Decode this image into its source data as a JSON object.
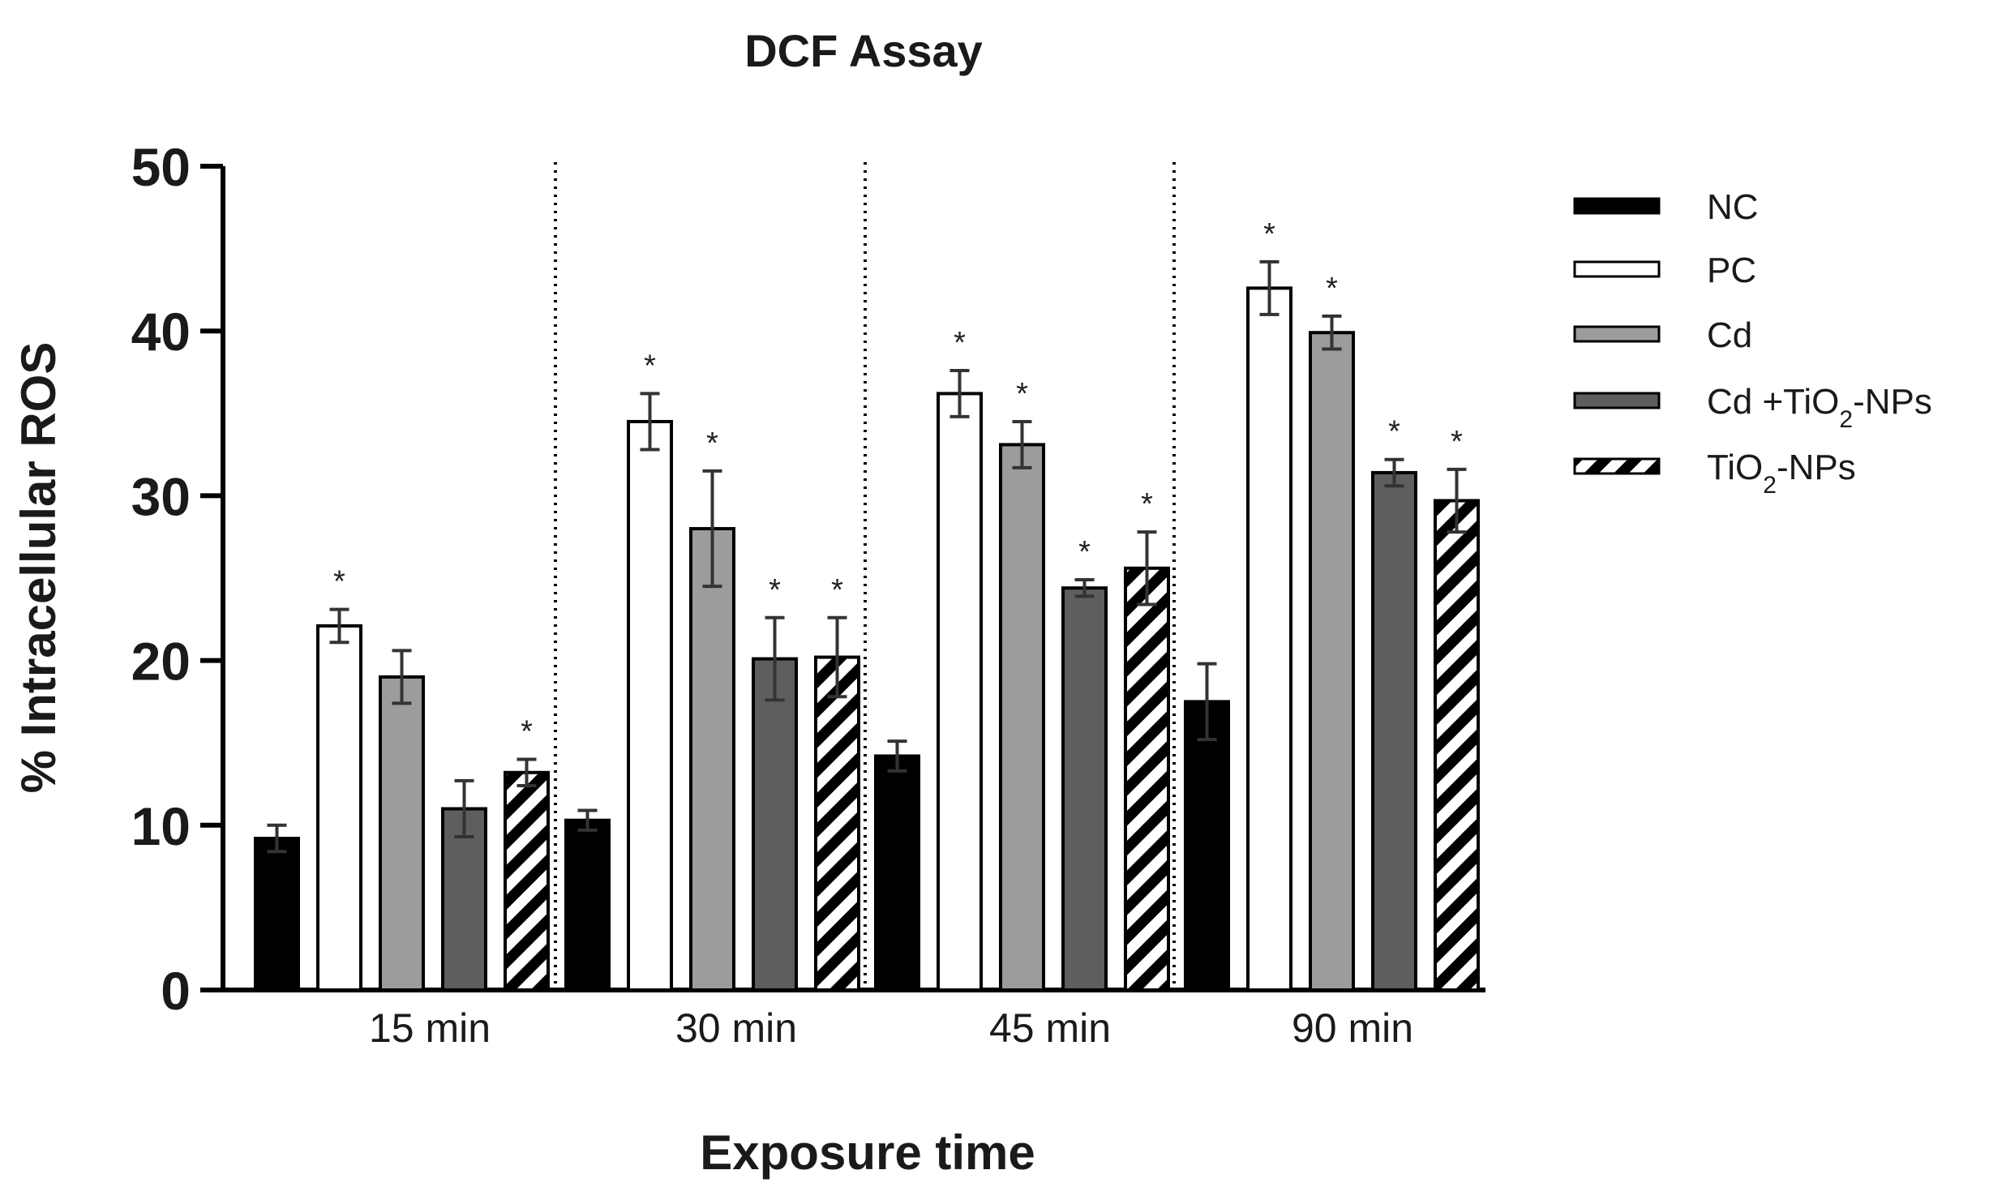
{
  "chart_data": {
    "type": "bar",
    "title": "DCF Assay",
    "xlabel": "Exposure time",
    "ylabel": "% Intracellular ROS",
    "ylim": [
      0,
      50
    ],
    "yticks": [
      "0",
      "10",
      "20",
      "30",
      "40",
      "50"
    ],
    "categories": [
      "15 min",
      "30 min",
      "45 min",
      "90 min"
    ],
    "significance_marker": "*",
    "series": [
      {
        "name": "NC",
        "legend_parts": [
          "NC"
        ],
        "color": "#000000",
        "pattern": "solid",
        "values": [
          9.2,
          10.3,
          14.2,
          17.5
        ],
        "errors": [
          0.8,
          0.6,
          0.9,
          2.3
        ],
        "significant": [
          false,
          false,
          false,
          false
        ]
      },
      {
        "name": "PC",
        "legend_parts": [
          "PC"
        ],
        "color": "#ffffff",
        "pattern": "solid",
        "values": [
          22.1,
          34.5,
          36.2,
          42.6
        ],
        "errors": [
          1.0,
          1.7,
          1.4,
          1.6
        ],
        "significant": [
          true,
          true,
          true,
          true
        ]
      },
      {
        "name": "Cd",
        "legend_parts": [
          "Cd"
        ],
        "color": "#9c9c9c",
        "pattern": "solid",
        "values": [
          19.0,
          28.0,
          33.1,
          39.9
        ],
        "errors": [
          1.6,
          3.5,
          1.4,
          1.0
        ],
        "significant": [
          false,
          true,
          true,
          true
        ]
      },
      {
        "name": "Cd +TiO2-NPs",
        "legend_parts": [
          "Cd +TiO",
          "2",
          "-NPs"
        ],
        "color": "#5e5e5e",
        "pattern": "solid",
        "values": [
          11.0,
          20.1,
          24.4,
          31.4
        ],
        "errors": [
          1.7,
          2.5,
          0.5,
          0.8
        ],
        "significant": [
          false,
          true,
          true,
          true
        ]
      },
      {
        "name": "TiO2-NPs",
        "legend_parts": [
          "TiO",
          "2",
          "-NPs"
        ],
        "color": "#000000",
        "pattern": "diagonal-stripes",
        "values": [
          13.2,
          20.2,
          25.6,
          29.7
        ],
        "errors": [
          0.8,
          2.4,
          2.2,
          1.9
        ],
        "significant": [
          true,
          true,
          true,
          true
        ]
      }
    ]
  }
}
